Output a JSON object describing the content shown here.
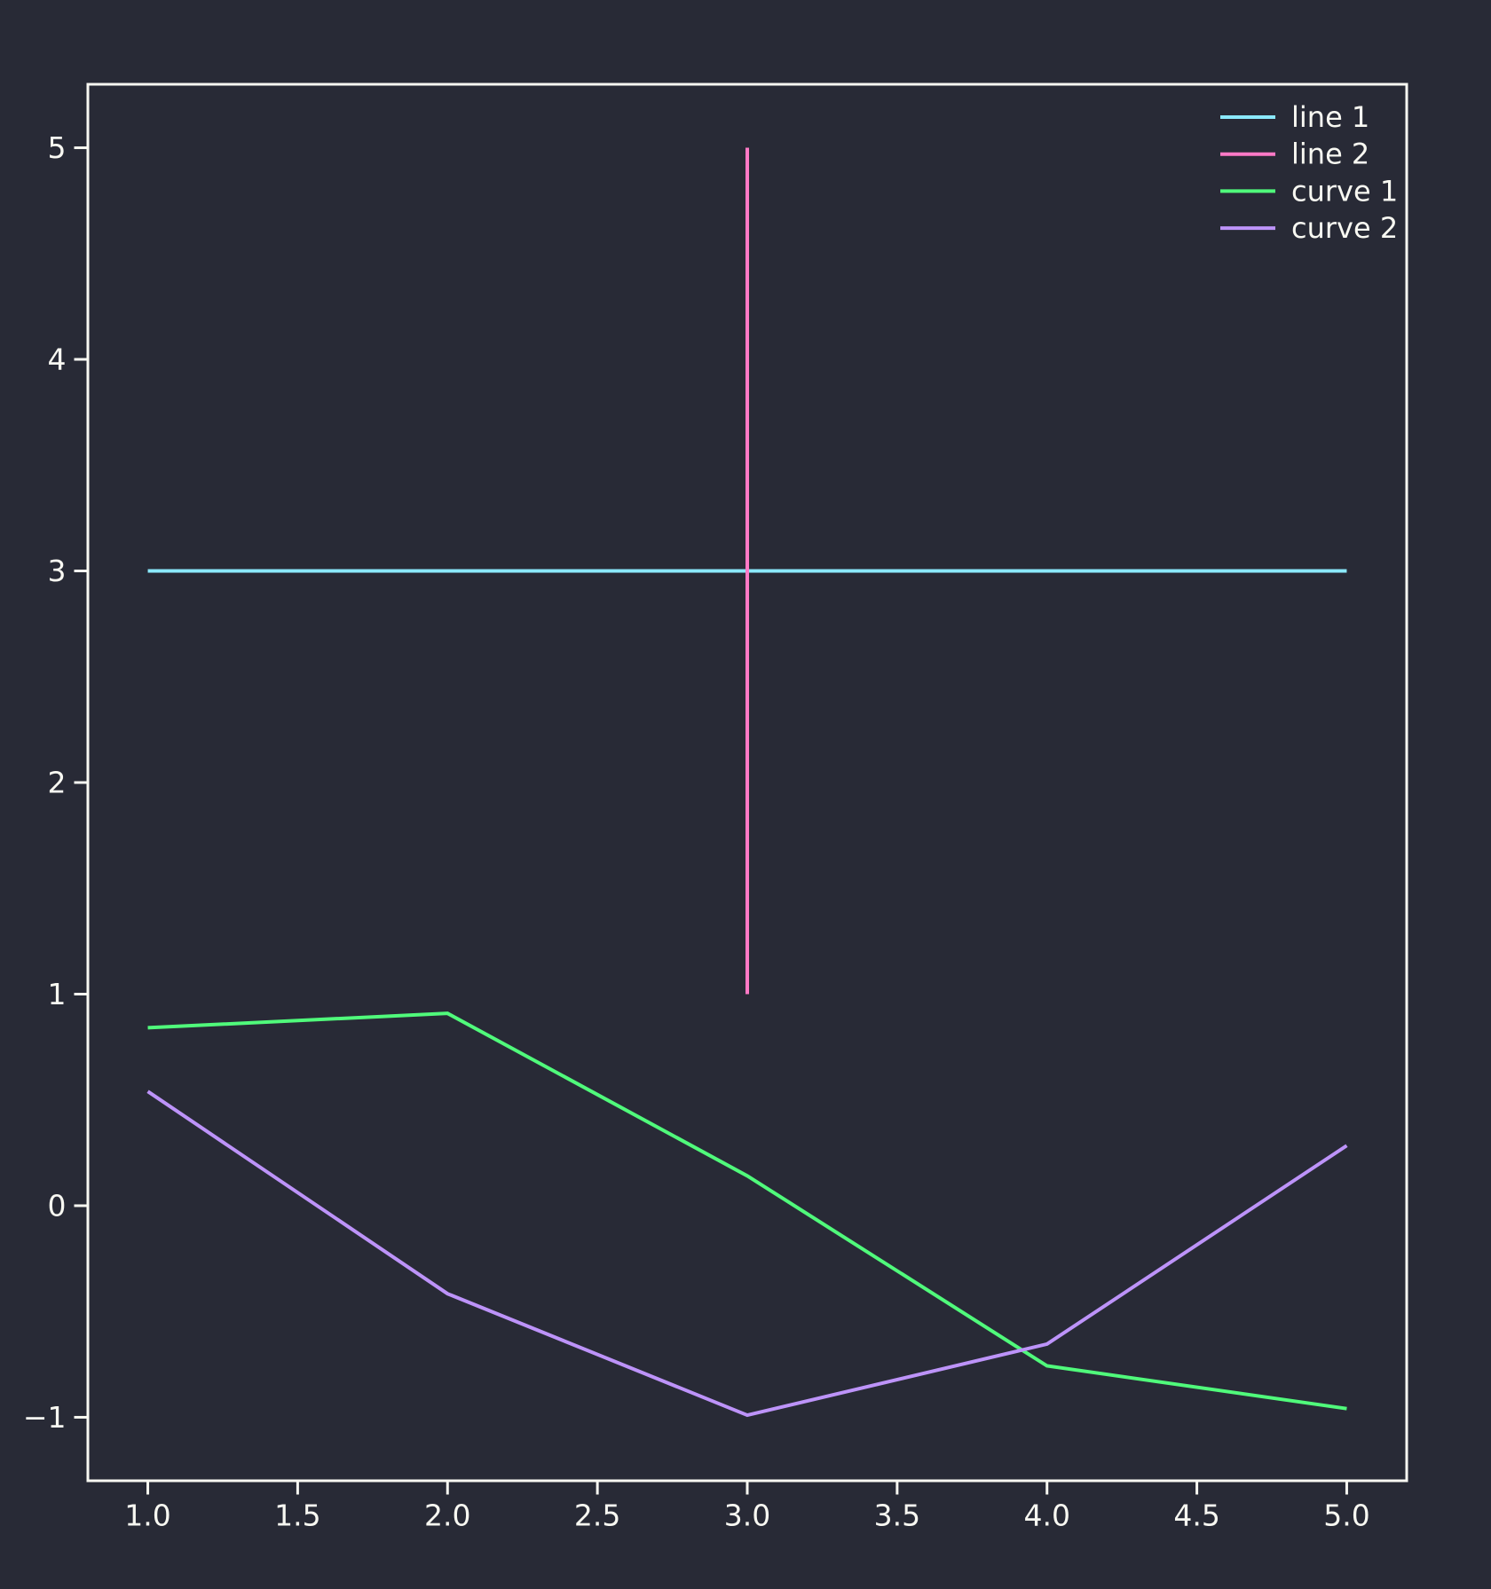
{
  "figure": {
    "background": "#282a36",
    "foreground": "#f8f8f2",
    "title": ""
  },
  "chart_data": {
    "type": "line",
    "title": "",
    "xlabel": "",
    "ylabel": "",
    "grid": false,
    "xlim": [
      0.8,
      5.2
    ],
    "ylim": [
      -1.3,
      5.3
    ],
    "x_ticks": [
      {
        "value": 1.0,
        "label": "1.0"
      },
      {
        "value": 1.5,
        "label": "1.5"
      },
      {
        "value": 2.0,
        "label": "2.0"
      },
      {
        "value": 2.5,
        "label": "2.5"
      },
      {
        "value": 3.0,
        "label": "3.0"
      },
      {
        "value": 3.5,
        "label": "3.5"
      },
      {
        "value": 4.0,
        "label": "4.0"
      },
      {
        "value": 4.5,
        "label": "4.5"
      },
      {
        "value": 5.0,
        "label": "5.0"
      }
    ],
    "y_ticks": [
      {
        "value": -1,
        "label": "−1"
      },
      {
        "value": 0,
        "label": "0"
      },
      {
        "value": 1,
        "label": "1"
      },
      {
        "value": 2,
        "label": "2"
      },
      {
        "value": 3,
        "label": "3"
      },
      {
        "value": 4,
        "label": "4"
      },
      {
        "value": 5,
        "label": "5"
      }
    ],
    "series": [
      {
        "name": "line 1",
        "color": "#8be9fd",
        "points": [
          [
            1,
            3
          ],
          [
            5,
            3
          ]
        ]
      },
      {
        "name": "line 2",
        "color": "#ff79c6",
        "points": [
          [
            3,
            1
          ],
          [
            3,
            5
          ]
        ]
      },
      {
        "name": "curve 1",
        "color": "#50fa7b",
        "points": [
          [
            1,
            0.841
          ],
          [
            2,
            0.909
          ],
          [
            3,
            0.141
          ],
          [
            4,
            -0.757
          ],
          [
            5,
            -0.959
          ]
        ]
      },
      {
        "name": "curve 2",
        "color": "#bd93f9",
        "points": [
          [
            1,
            0.54
          ],
          [
            2,
            -0.416
          ],
          [
            3,
            -0.99
          ],
          [
            4,
            -0.654
          ],
          [
            5,
            0.284
          ]
        ]
      }
    ],
    "legend": {
      "position": "upper right",
      "frame": false,
      "entries": [
        "line 1",
        "line 2",
        "curve 1",
        "curve 2"
      ]
    }
  }
}
